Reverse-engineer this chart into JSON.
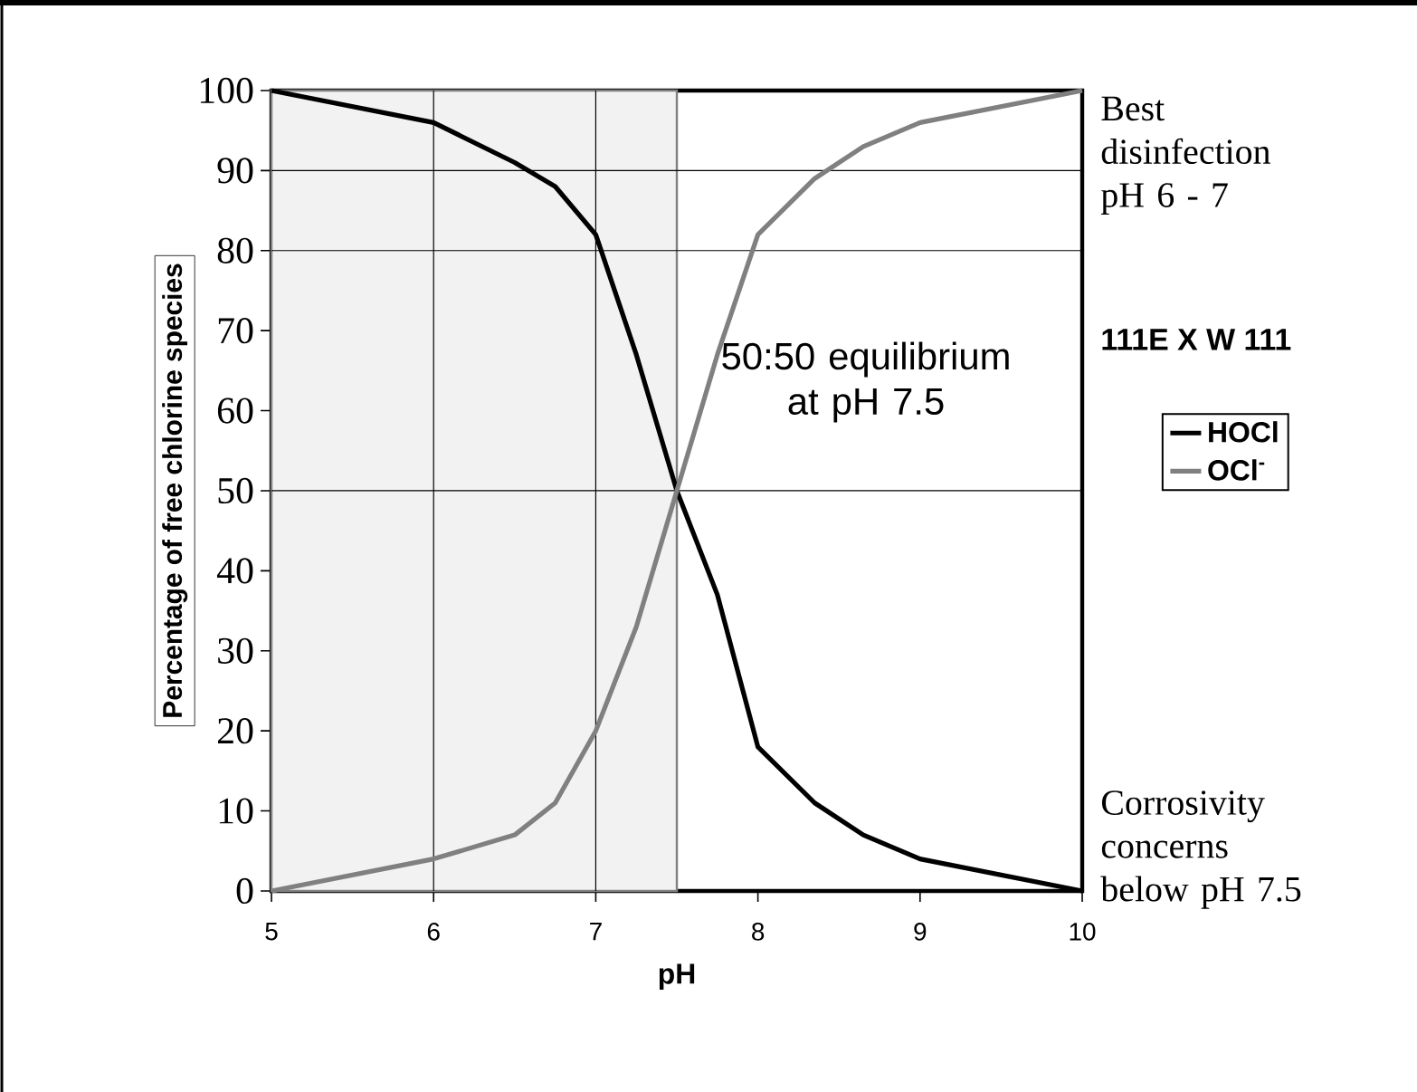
{
  "chart_data": {
    "type": "line",
    "xlabel": "pH",
    "ylabel": "Percentage of free chlorine species",
    "xlim": [
      5,
      10
    ],
    "ylim": [
      0,
      100
    ],
    "xticks": [
      5,
      6,
      7,
      8,
      9,
      10
    ],
    "yticks": [
      0,
      10,
      20,
      30,
      40,
      50,
      60,
      70,
      80,
      90,
      100
    ],
    "series": [
      {
        "name": "HOCl",
        "color": "#000000",
        "x": [
          5,
          5.5,
          6,
          6.5,
          6.75,
          7,
          7.25,
          7.5,
          7.75,
          8,
          8.35,
          8.65,
          9,
          9.5,
          10
        ],
        "values": [
          100,
          98,
          96,
          91,
          88,
          82,
          67,
          50,
          37,
          18,
          11,
          7,
          4,
          2,
          0
        ]
      },
      {
        "name": "OCl$^{-}$",
        "color": "#808080",
        "x": [
          5,
          5.5,
          6,
          6.5,
          6.75,
          7,
          7.25,
          7.5,
          7.75,
          8,
          8.35,
          8.65,
          9,
          9.5,
          10
        ],
        "values": [
          0,
          2,
          4,
          7,
          11,
          20,
          33,
          50,
          67,
          82,
          89,
          93,
          96,
          98,
          100
        ]
      }
    ],
    "ref_lines": [
      {
        "axis": "x",
        "value": 6
      },
      {
        "axis": "x",
        "value": 7
      },
      {
        "axis": "y",
        "value": 50
      },
      {
        "axis": "y",
        "value": 80
      },
      {
        "axis": "y",
        "value": 90
      }
    ],
    "bands": [
      {
        "axis": "x",
        "from": 5,
        "to": 7.5,
        "color": "#f2f2f2"
      }
    ],
    "annotations": [
      {
        "text": "50:50 equilibrium at pH 7.5",
        "x": 7.5,
        "y": 50
      },
      "Best disinfection pH 6 - 7",
      "111E X W 111",
      "Corrosivity concerns below pH 7.5"
    ],
    "legend": "right",
    "grid": false,
    "marker": "none",
    "line_style": "solid"
  }
}
